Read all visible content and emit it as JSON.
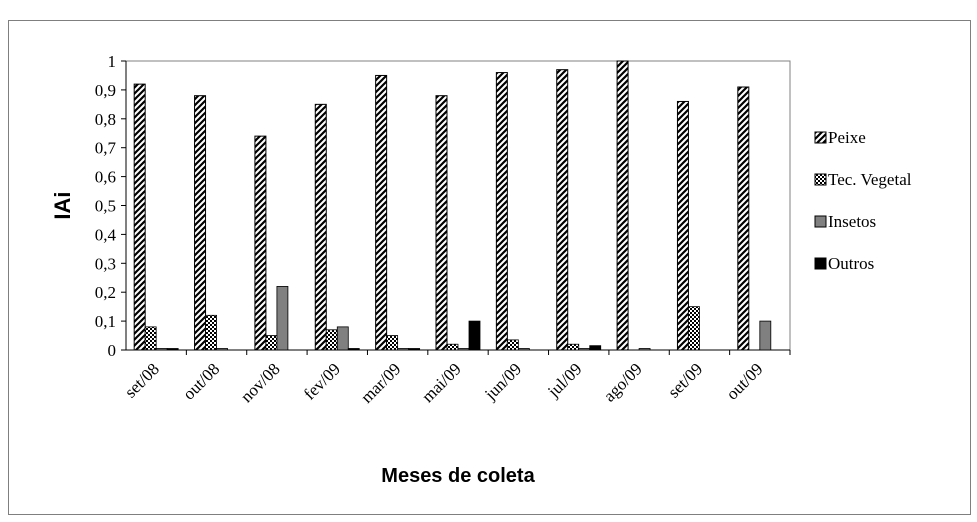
{
  "chart_data": {
    "type": "bar",
    "categories": [
      "set/08",
      "out/08",
      "nov/08",
      "fev/09",
      "mar/09",
      "mai/09",
      "jun/09",
      "jul/09",
      "ago/09",
      "set/09",
      "out/09"
    ],
    "series": [
      {
        "name": "Peixe",
        "pattern": "diagonal-hatch",
        "color": "#000000",
        "values": [
          0.92,
          0.88,
          0.74,
          0.85,
          0.95,
          0.88,
          0.96,
          0.97,
          1.0,
          0.86,
          0.91
        ]
      },
      {
        "name": "Tec. Vegetal",
        "pattern": "checker",
        "color": "#000000",
        "values": [
          0.08,
          0.12,
          0.05,
          0.07,
          0.05,
          0.02,
          0.035,
          0.02,
          0.0,
          0.15,
          0.0
        ]
      },
      {
        "name": "Insetos",
        "pattern": "solid-gray",
        "color": "#808080",
        "values": [
          0.005,
          0.005,
          0.22,
          0.08,
          0.005,
          0.005,
          0.005,
          0.005,
          0.005,
          0.0,
          0.1
        ]
      },
      {
        "name": "Outros",
        "pattern": "solid-black",
        "color": "#000000",
        "values": [
          0.005,
          0.0,
          0.0,
          0.005,
          0.005,
          0.1,
          0.0,
          0.015,
          0.0,
          0.0,
          0.0
        ]
      }
    ],
    "xlabel": "Meses de coleta",
    "ylabel": "IAi",
    "ylim": [
      0,
      1
    ],
    "yticks": [
      "0",
      "0,1",
      "0,2",
      "0,3",
      "0,4",
      "0,5",
      "0,6",
      "0,7",
      "0,8",
      "0,9",
      "1"
    ],
    "grid": false,
    "legend": "right"
  }
}
